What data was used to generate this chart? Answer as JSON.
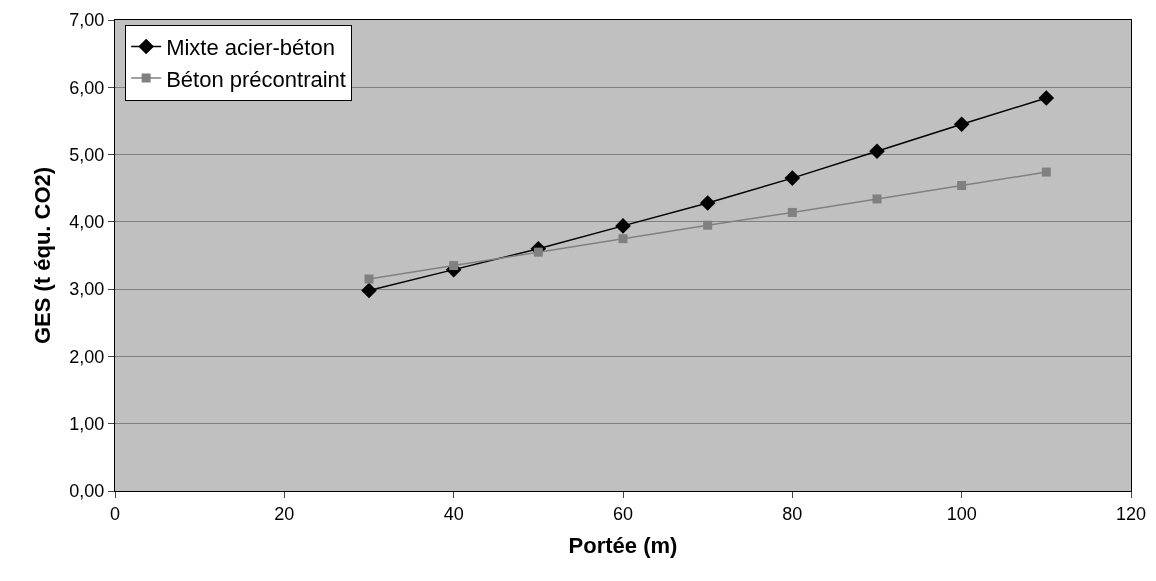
{
  "chart_data": {
    "type": "line",
    "xlabel": "Portée (m)",
    "ylabel": "GES (t équ. CO2)",
    "x": [
      30,
      40,
      50,
      60,
      70,
      80,
      90,
      100,
      110
    ],
    "series": [
      {
        "name": "Mixte acier-béton",
        "color": "#000000",
        "marker": "diamond",
        "values": [
          2.98,
          3.29,
          3.6,
          3.94,
          4.28,
          4.65,
          5.05,
          5.45,
          5.84
        ]
      },
      {
        "name": "Béton précontraint",
        "color": "#808080",
        "marker": "square",
        "values": [
          3.15,
          3.35,
          3.55,
          3.75,
          3.95,
          4.14,
          4.34,
          4.54,
          4.74
        ]
      }
    ],
    "xlim": [
      0,
      120
    ],
    "xticks": [
      0,
      20,
      40,
      60,
      80,
      100,
      120
    ],
    "ylim": [
      0,
      7
    ],
    "yticks": [
      {
        "value": 0,
        "label": "0,00"
      },
      {
        "value": 1,
        "label": "1,00"
      },
      {
        "value": 2,
        "label": "2,00"
      },
      {
        "value": 3,
        "label": "3,00"
      },
      {
        "value": 4,
        "label": "4,00"
      },
      {
        "value": 5,
        "label": "5,00"
      },
      {
        "value": 6,
        "label": "6,00"
      },
      {
        "value": 7,
        "label": "7,00"
      }
    ],
    "grid": "y",
    "legend": "top left",
    "line_style": "solid"
  }
}
